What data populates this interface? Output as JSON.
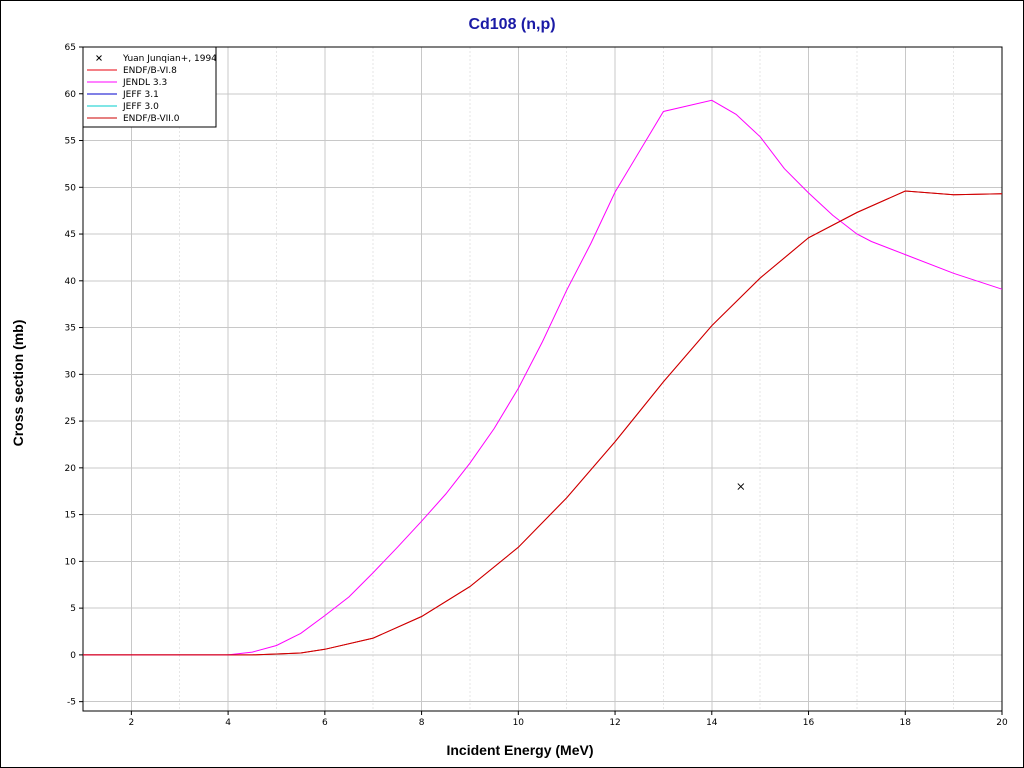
{
  "chart_data": {
    "type": "line",
    "title": "Cd108 (n,p)",
    "xlabel": "Incident Energy (MeV)",
    "ylabel": "Cross section (mb)",
    "xlim": [
      1,
      20
    ],
    "ylim": [
      -6,
      65
    ],
    "x_ticks": [
      2,
      4,
      6,
      8,
      10,
      12,
      14,
      16,
      18,
      20
    ],
    "y_ticks": [
      -5,
      0,
      5,
      10,
      15,
      20,
      25,
      30,
      35,
      40,
      45,
      50,
      55,
      60,
      65
    ],
    "grid": true,
    "legend_position": "top-left",
    "colors": {
      "title": "#1a1aa6",
      "endf_b_vi8": "#e8000e",
      "jendl33": "#ff00ff",
      "jeff31": "#0000cc",
      "jeff30": "#00cccc",
      "endf_b_vii0": "#cc0000",
      "experimental": "#000000"
    },
    "series": [
      {
        "name": "Yuan Junqian+, 1994",
        "kind": "points",
        "marker": "x",
        "color": "#000000",
        "points": [
          [
            14.6,
            18.0
          ]
        ]
      },
      {
        "name": "ENDF/B-VI.8",
        "kind": "line",
        "color": "#e8000e",
        "x": [
          1,
          4,
          4.5,
          5,
          5.5,
          6,
          7,
          8,
          9,
          10,
          11,
          12,
          13,
          14,
          15,
          16,
          17,
          18,
          19,
          20
        ],
        "y": [
          0,
          0,
          0.0,
          0.1,
          0.2,
          0.6,
          1.8,
          4.1,
          7.3,
          11.5,
          16.8,
          22.8,
          29.2,
          35.2,
          40.3,
          44.6,
          47.3,
          49.6,
          49.2,
          49.3
        ]
      },
      {
        "name": "JENDL 3.3",
        "kind": "line",
        "color": "#ff00ff",
        "x": [
          1,
          4,
          4.5,
          5,
          5.5,
          6,
          6.5,
          7,
          7.5,
          8,
          8.5,
          9,
          9.5,
          10,
          10.5,
          11,
          11.5,
          12,
          13,
          14,
          14.5,
          15,
          15.5,
          16,
          16.5,
          17,
          17.3,
          18,
          19,
          20
        ],
        "y": [
          0,
          0,
          0.3,
          1.0,
          2.3,
          4.2,
          6.2,
          8.8,
          11.5,
          14.3,
          17.2,
          20.5,
          24.2,
          28.5,
          33.5,
          39.0,
          44.0,
          49.5,
          58.1,
          59.3,
          57.8,
          55.4,
          52.0,
          49.4,
          47.0,
          45.0,
          44.2,
          42.8,
          40.8,
          39.1
        ]
      },
      {
        "name": "JEFF 3.1",
        "kind": "line",
        "color": "#0000cc",
        "x": [],
        "y": []
      },
      {
        "name": "JEFF 3.0",
        "kind": "line",
        "color": "#00cccc",
        "x": [],
        "y": []
      },
      {
        "name": "ENDF/B-VII.0",
        "kind": "line",
        "color": "#cc0000",
        "x": [
          1,
          4,
          4.5,
          5,
          5.5,
          6,
          7,
          8,
          9,
          10,
          11,
          12,
          13,
          14,
          15,
          16,
          17,
          18,
          19,
          20
        ],
        "y": [
          0,
          0,
          0.0,
          0.1,
          0.2,
          0.6,
          1.8,
          4.1,
          7.3,
          11.5,
          16.8,
          22.8,
          29.2,
          35.2,
          40.3,
          44.6,
          47.3,
          49.6,
          49.2,
          49.3
        ]
      }
    ]
  }
}
